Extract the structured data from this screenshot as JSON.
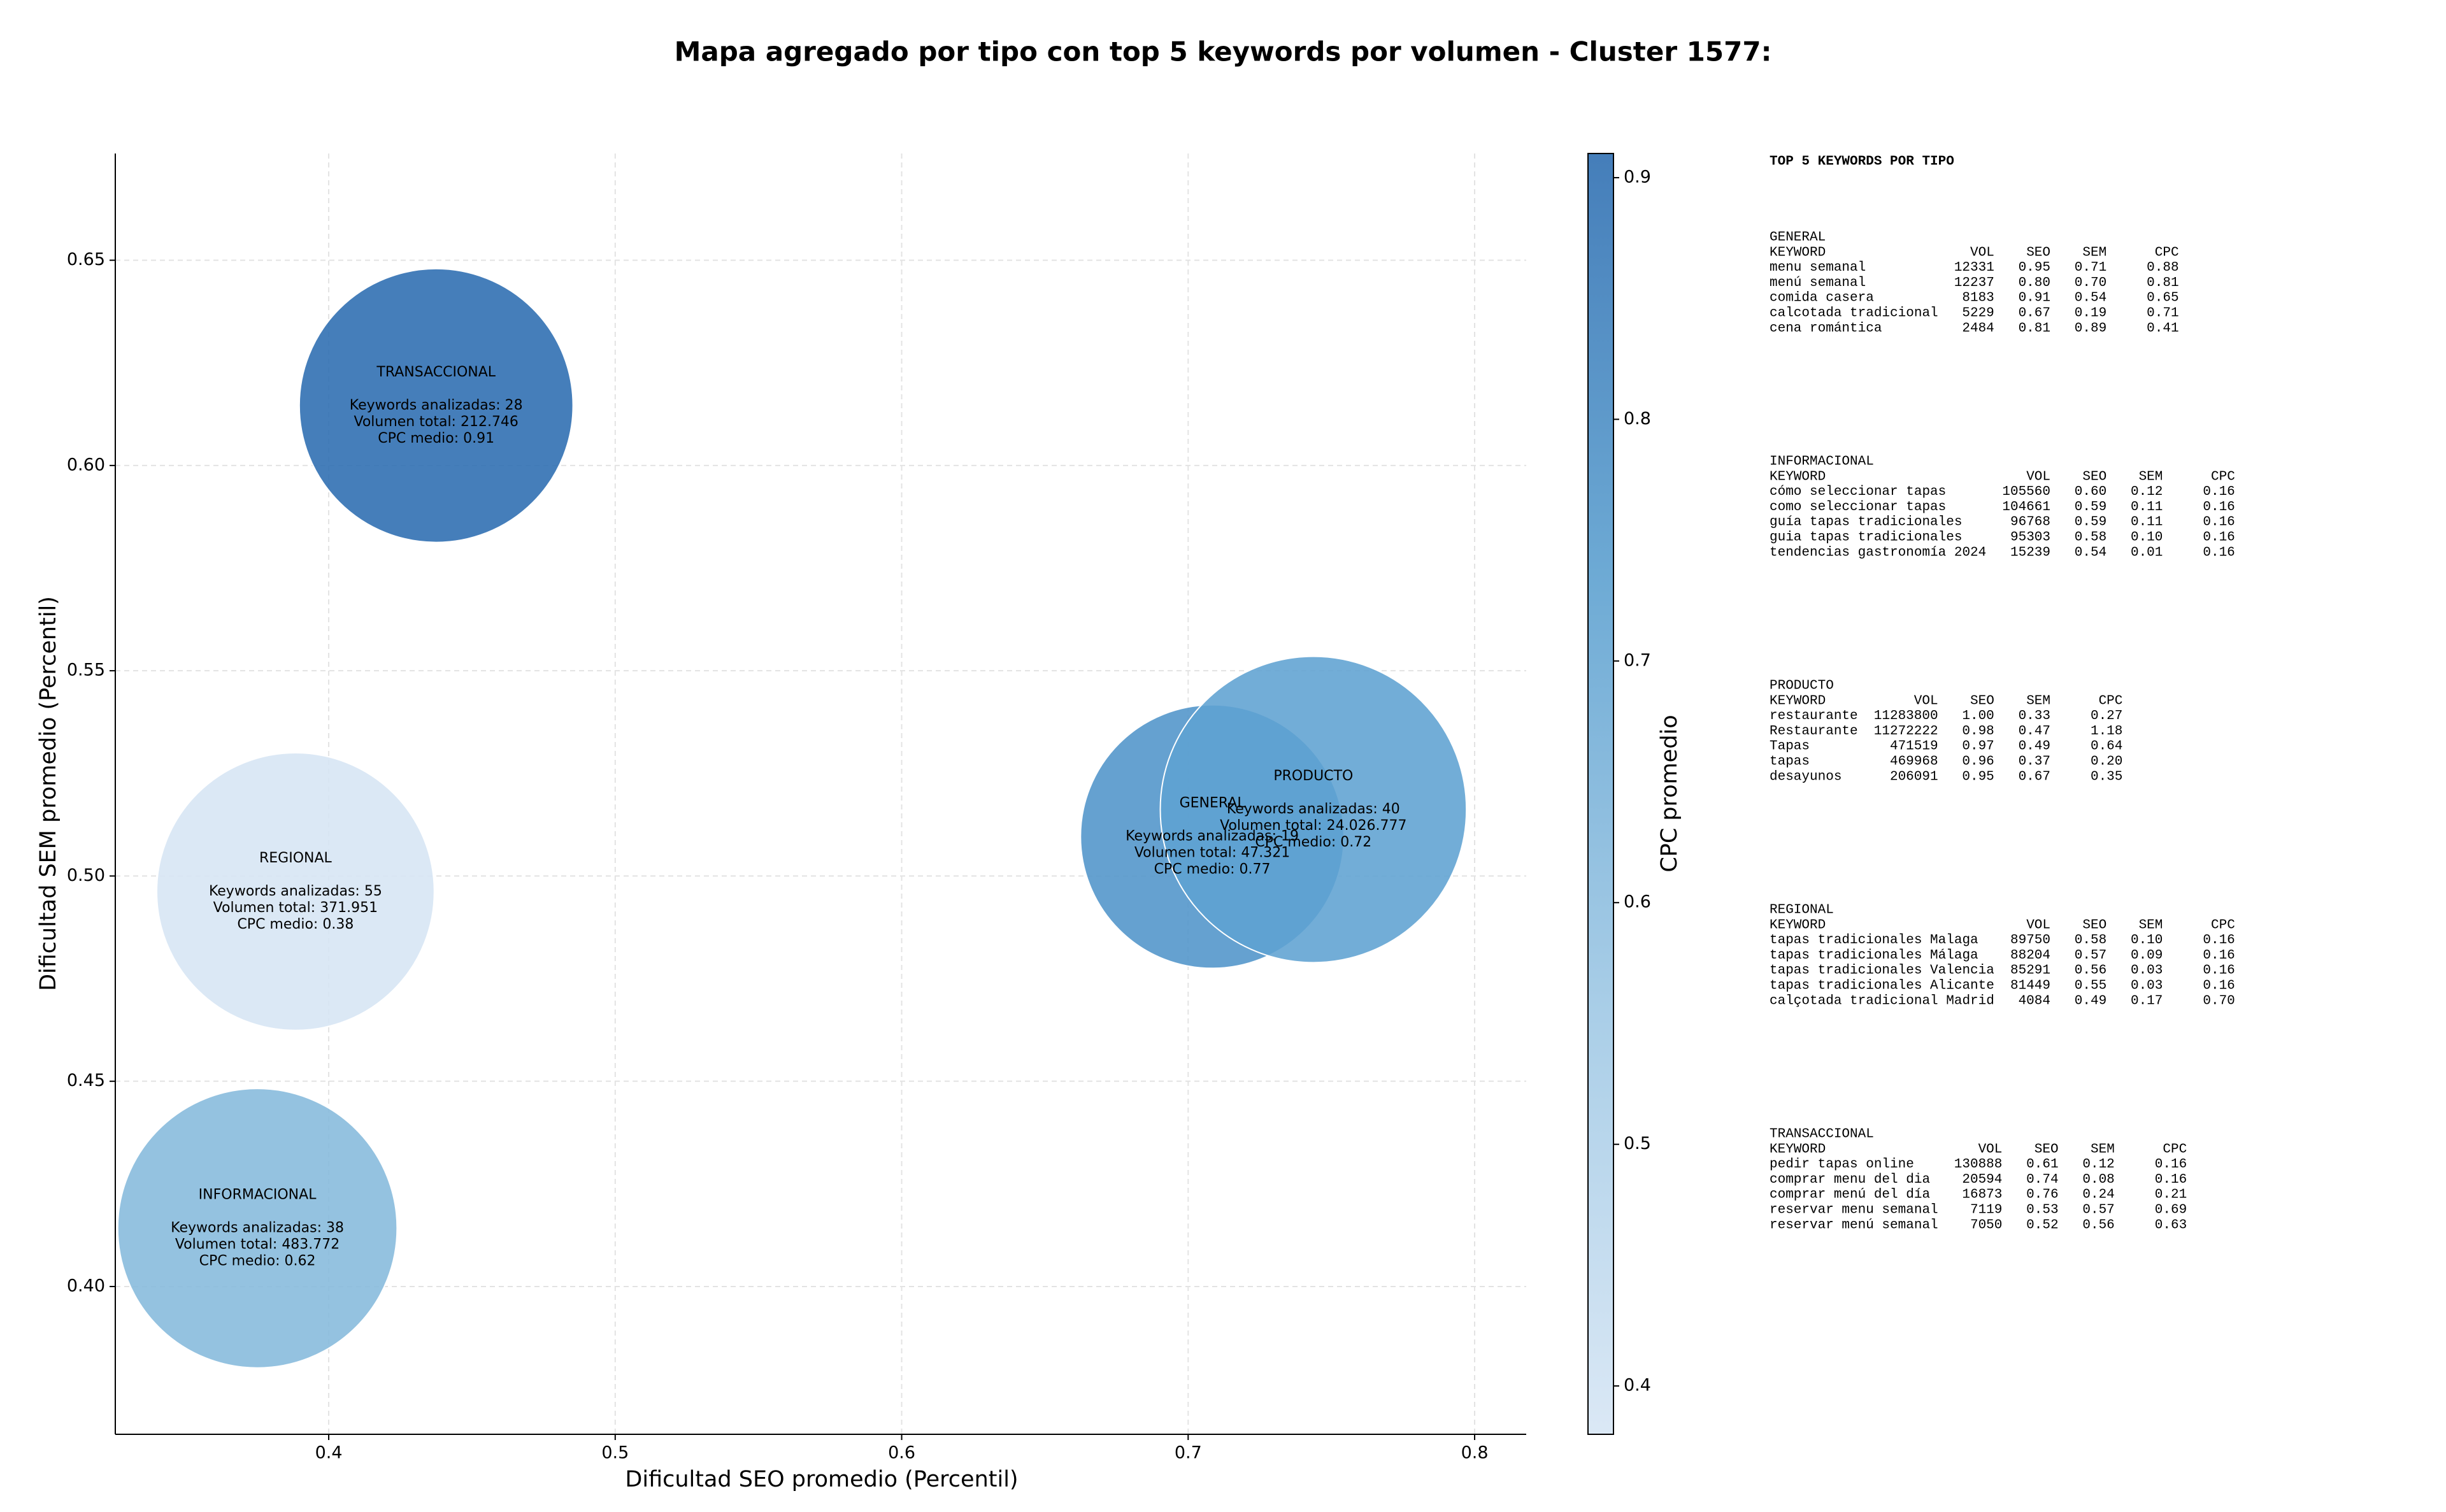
{
  "chart_data": {
    "type": "bubble",
    "title": "Mapa agregado por tipo con top 5 keywords por volumen - Cluster 1577:",
    "x_label": "Dificultad SEO promedio (Percentil)",
    "y_label": "Dificultad SEM promedio (Percentil)",
    "labels": [
      "GENERAL",
      "INFORMACIONAL",
      "PRODUCTO",
      "REGIONAL",
      "TRANSACCIONAL"
    ],
    "x": [
      0.7084,
      0.3751,
      0.7437,
      0.3884,
      0.4375
    ],
    "y": [
      0.5096,
      0.4142,
      0.5162,
      0.4962,
      0.6146
    ],
    "volume": [
      47321,
      483772,
      24026777,
      371951,
      212746
    ],
    "cpc": [
      0.77,
      0.62,
      0.72,
      0.38,
      0.91
    ],
    "annotations": [
      [
        "Keywords analizadas: 19",
        "Volumen total: 47.321",
        "CPC medio: 0.77"
      ],
      [
        "Keywords analizadas: 38",
        "Volumen total: 483.772",
        "CPC medio: 0.62"
      ],
      [
        "Keywords analizadas: 40",
        "Volumen total: 24.026.777",
        "CPC medio: 0.72"
      ],
      [
        "Keywords analizadas: 55",
        "Volumen total: 371.951",
        "CPC medio: 0.38"
      ],
      [
        "Keywords analizadas: 28",
        "Volumen total: 212.746",
        "CPC medio: 0.91"
      ]
    ],
    "xlim": [
      0.3255,
      0.818
    ],
    "ylim": [
      0.364,
      0.676
    ],
    "xticks": [
      0.4,
      0.5,
      0.6,
      0.7,
      0.8
    ],
    "yticks": [
      {
        "value": 0.4,
        "label": "0.40"
      },
      {
        "value": 0.45,
        "label": "0.45"
      },
      {
        "value": 0.5,
        "label": "0.50"
      },
      {
        "value": 0.55,
        "label": "0.55"
      },
      {
        "value": 0.6,
        "label": "0.60"
      },
      {
        "value": 0.65,
        "label": "0.65"
      }
    ],
    "grid": true,
    "colorscale": [
      "#d6e5f4",
      "#9dc7e4",
      "#5a9fcf",
      "#2b6cb0"
    ],
    "clim": [
      0.38,
      0.91
    ],
    "cticks": [
      0.4,
      0.5,
      0.6,
      0.7,
      0.8,
      0.9
    ],
    "colorbar_label": "CPC promedio"
  },
  "side_panel": {
    "title": "TOP 5 KEYWORDS POR TIPO",
    "sections": [
      {
        "name": "GENERAL",
        "header": [
          "KEYWORD",
          "VOL",
          "SEO",
          "SEM",
          "CPC"
        ],
        "rows": [
          [
            "menu semanal",
            "12331",
            "0.95",
            "0.71",
            "0.88"
          ],
          [
            "menú semanal",
            "12237",
            "0.80",
            "0.70",
            "0.81"
          ],
          [
            "comida casera",
            "8183",
            "0.91",
            "0.54",
            "0.65"
          ],
          [
            "calcotada tradicional",
            "5229",
            "0.67",
            "0.19",
            "0.71"
          ],
          [
            "cena romántica",
            "2484",
            "0.81",
            "0.89",
            "0.41"
          ]
        ]
      },
      {
        "name": "INFORMACIONAL",
        "header": [
          "KEYWORD",
          "VOL",
          "SEO",
          "SEM",
          "CPC"
        ],
        "rows": [
          [
            "cómo seleccionar tapas",
            "105560",
            "0.60",
            "0.12",
            "0.16"
          ],
          [
            "como seleccionar tapas",
            "104661",
            "0.59",
            "0.11",
            "0.16"
          ],
          [
            "guía tapas tradicionales",
            "96768",
            "0.59",
            "0.11",
            "0.16"
          ],
          [
            "guia tapas tradicionales",
            "95303",
            "0.58",
            "0.10",
            "0.16"
          ],
          [
            "tendencias gastronomía 2024",
            "15239",
            "0.54",
            "0.01",
            "0.16"
          ]
        ]
      },
      {
        "name": "PRODUCTO",
        "header": [
          "KEYWORD",
          "VOL",
          "SEO",
          "SEM",
          "CPC"
        ],
        "rows": [
          [
            "restaurante",
            "11283800",
            "1.00",
            "0.33",
            "0.27"
          ],
          [
            "Restaurante",
            "11272222",
            "0.98",
            "0.47",
            "1.18"
          ],
          [
            "Tapas",
            "471519",
            "0.97",
            "0.49",
            "0.64"
          ],
          [
            "tapas",
            "469968",
            "0.96",
            "0.37",
            "0.20"
          ],
          [
            "desayunos",
            "206091",
            "0.95",
            "0.67",
            "0.35"
          ]
        ]
      },
      {
        "name": "REGIONAL",
        "header": [
          "KEYWORD",
          "VOL",
          "SEO",
          "SEM",
          "CPC"
        ],
        "rows": [
          [
            "tapas tradicionales Malaga",
            "89750",
            "0.58",
            "0.10",
            "0.16"
          ],
          [
            "tapas tradicionales Málaga",
            "88204",
            "0.57",
            "0.09",
            "0.16"
          ],
          [
            "tapas tradicionales Valencia",
            "85291",
            "0.56",
            "0.03",
            "0.16"
          ],
          [
            "tapas tradicionales Alicante",
            "81449",
            "0.55",
            "0.03",
            "0.16"
          ],
          [
            "calçotada tradicional Madrid",
            "4084",
            "0.49",
            "0.17",
            "0.70"
          ]
        ]
      },
      {
        "name": "TRANSACCIONAL",
        "header": [
          "KEYWORD",
          "VOL",
          "SEO",
          "SEM",
          "CPC"
        ],
        "rows": [
          [
            "pedir tapas online",
            "130888",
            "0.61",
            "0.12",
            "0.16"
          ],
          [
            "comprar menu del dia",
            "20594",
            "0.74",
            "0.08",
            "0.16"
          ],
          [
            "comprar menú del día",
            "16873",
            "0.76",
            "0.24",
            "0.21"
          ],
          [
            "reservar menu semanal",
            "7119",
            "0.53",
            "0.57",
            "0.69"
          ],
          [
            "reservar menú semanal",
            "7050",
            "0.52",
            "0.56",
            "0.63"
          ]
        ]
      }
    ]
  }
}
